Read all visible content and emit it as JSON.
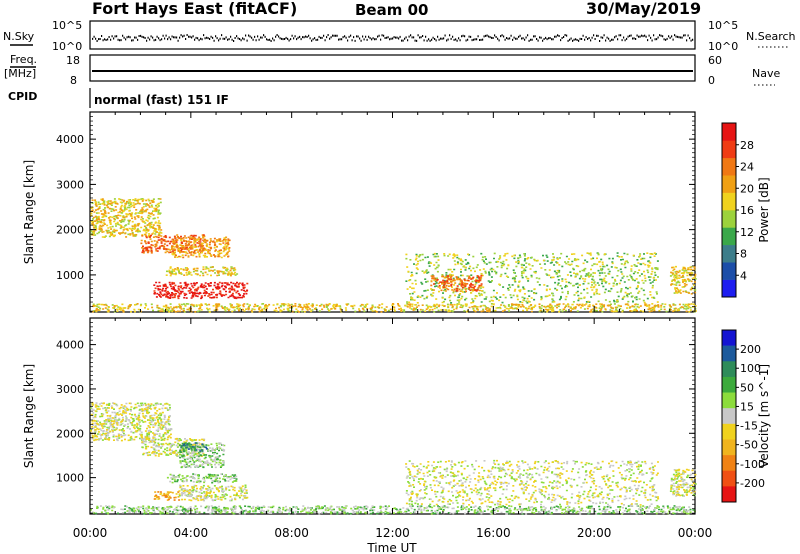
{
  "header": {
    "title": "Fort Hays East (fitACF)",
    "beam": "Beam 00",
    "date": "30/May/2019"
  },
  "panels": {
    "nsky_label": "N.Sky",
    "nsky_ticks": [
      "10^5",
      "10^0"
    ],
    "nsearch_label": "N.Search",
    "nsearch_ticks": [
      "10^5",
      "10^0"
    ],
    "freq_label_1": "Freq.",
    "freq_label_2": "[MHz]",
    "freq_ticks": [
      "18",
      "8"
    ],
    "nave_label": "Nave",
    "nave_ticks": [
      "60",
      "0"
    ],
    "cpid_label": "CPID",
    "cpid_text": "normal (fast) 151 IF"
  },
  "chart_data": [
    {
      "type": "heatmap",
      "quantity": "power",
      "ylabel": "Slant Range [km]",
      "xlabel": "Time UT",
      "xlim": [
        0,
        24
      ],
      "ylim": [
        180,
        4600
      ],
      "yticks": [
        "1000",
        "2000",
        "3000",
        "4000"
      ],
      "xticks": [
        "00:00",
        "04:00",
        "08:00",
        "12:00",
        "16:00",
        "20:00",
        "00:00"
      ],
      "colorbar": {
        "label": "Power [dB]",
        "ticks": [
          "4",
          "8",
          "12",
          "16",
          "20",
          "24",
          "28"
        ],
        "colors": [
          "#1e1ef0",
          "#1c4ea8",
          "#3c7d8a",
          "#3aa84a",
          "#9cd23c",
          "#f0d21e",
          "#f0a014",
          "#f07814",
          "#f03c14",
          "#e61414"
        ]
      },
      "regions": [
        {
          "t0": 0.0,
          "t1": 2.8,
          "r0": 1850,
          "r1": 2700,
          "level": 5
        },
        {
          "t0": 2.0,
          "t1": 4.5,
          "r0": 1500,
          "r1": 1900,
          "level": 7
        },
        {
          "t0": 3.2,
          "t1": 5.5,
          "r0": 1400,
          "r1": 1850,
          "level": 6
        },
        {
          "t0": 3.0,
          "t1": 5.8,
          "r0": 1000,
          "r1": 1200,
          "level": 5
        },
        {
          "t0": 2.5,
          "t1": 6.2,
          "r0": 500,
          "r1": 850,
          "level": 9
        },
        {
          "t0": 0.0,
          "t1": 24.0,
          "r0": 200,
          "r1": 380,
          "level": 5
        },
        {
          "t0": 12.5,
          "t1": 22.5,
          "r0": 400,
          "r1": 1500,
          "level": 4
        },
        {
          "t0": 13.5,
          "t1": 15.5,
          "r0": 650,
          "r1": 1000,
          "level": 7
        },
        {
          "t0": 23.0,
          "t1": 24.0,
          "r0": 600,
          "r1": 1200,
          "level": 5
        }
      ]
    },
    {
      "type": "heatmap",
      "quantity": "velocity",
      "ylabel": "Slant Range [km]",
      "xlabel": "Time UT",
      "xlim": [
        0,
        24
      ],
      "ylim": [
        180,
        4600
      ],
      "yticks": [
        "1000",
        "2000",
        "3000",
        "4000"
      ],
      "xticks": [
        "00:00",
        "04:00",
        "08:00",
        "12:00",
        "16:00",
        "20:00",
        "00:00"
      ],
      "colorbar": {
        "label": "Velocity [m s^-1]",
        "ticks": [
          "200",
          "100",
          "50",
          "15",
          "-15",
          "-50",
          "-100",
          "-200"
        ],
        "colors": [
          "#1414d2",
          "#1c5a9c",
          "#2e8c5a",
          "#3caa3c",
          "#8cdc3c",
          "#c8c8c8",
          "#f0d21e",
          "#f0b41e",
          "#f08214",
          "#f05014",
          "#e61414"
        ]
      },
      "regions": [
        {
          "t0": 0.0,
          "t1": 3.2,
          "r0": 1850,
          "r1": 2700,
          "level": 5
        },
        {
          "t0": 2.0,
          "t1": 4.5,
          "r0": 1500,
          "r1": 1900,
          "level": 5
        },
        {
          "t0": 3.5,
          "t1": 5.3,
          "r0": 1250,
          "r1": 1800,
          "level": 4
        },
        {
          "t0": 3.5,
          "t1": 4.6,
          "r0": 1600,
          "r1": 1800,
          "level": 2
        },
        {
          "t0": 3.0,
          "t1": 5.8,
          "r0": 900,
          "r1": 1100,
          "level": 4
        },
        {
          "t0": 2.5,
          "t1": 3.5,
          "r0": 500,
          "r1": 700,
          "level": 7
        },
        {
          "t0": 3.5,
          "t1": 6.2,
          "r0": 500,
          "r1": 850,
          "level": 5
        },
        {
          "t0": 0.0,
          "t1": 24.0,
          "r0": 200,
          "r1": 380,
          "level": 4
        },
        {
          "t0": 12.5,
          "t1": 22.5,
          "r0": 400,
          "r1": 1400,
          "level": 5
        },
        {
          "t0": 23.0,
          "t1": 24.0,
          "r0": 600,
          "r1": 1200,
          "level": 5
        }
      ]
    }
  ]
}
